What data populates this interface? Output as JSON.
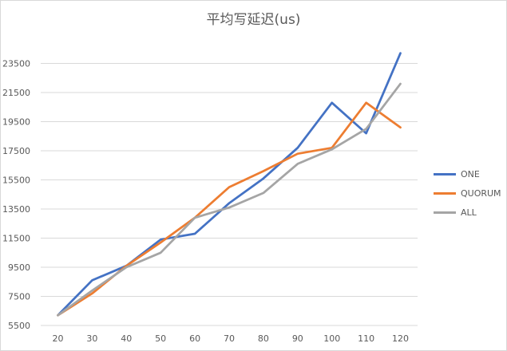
{
  "chart_data": {
    "type": "line",
    "title": "平均写延迟(us)",
    "xlabel": "",
    "ylabel": "",
    "categories": [
      "20",
      "30",
      "40",
      "50",
      "60",
      "70",
      "80",
      "90",
      "100",
      "110",
      "120"
    ],
    "y_ticks": [
      "5500",
      "7500",
      "9500",
      "11500",
      "13500",
      "15500",
      "17500",
      "19500",
      "21500",
      "23500"
    ],
    "ylim": [
      5500,
      25500
    ],
    "grid": true,
    "legend_position": "right",
    "series": [
      {
        "name": "ONE",
        "color": "#4472c4",
        "values": [
          6200,
          8600,
          9600,
          11400,
          11800,
          13900,
          15600,
          17700,
          20800,
          18700,
          24200
        ]
      },
      {
        "name": "QUORUM",
        "color": "#ed7d31",
        "values": [
          6200,
          7700,
          9600,
          11200,
          12900,
          15000,
          16100,
          17300,
          17700,
          20800,
          19100
        ]
      },
      {
        "name": "ALL",
        "color": "#a5a5a5",
        "values": [
          6200,
          7900,
          9500,
          10500,
          12900,
          13600,
          14600,
          16600,
          17600,
          19000,
          22100
        ]
      }
    ]
  }
}
